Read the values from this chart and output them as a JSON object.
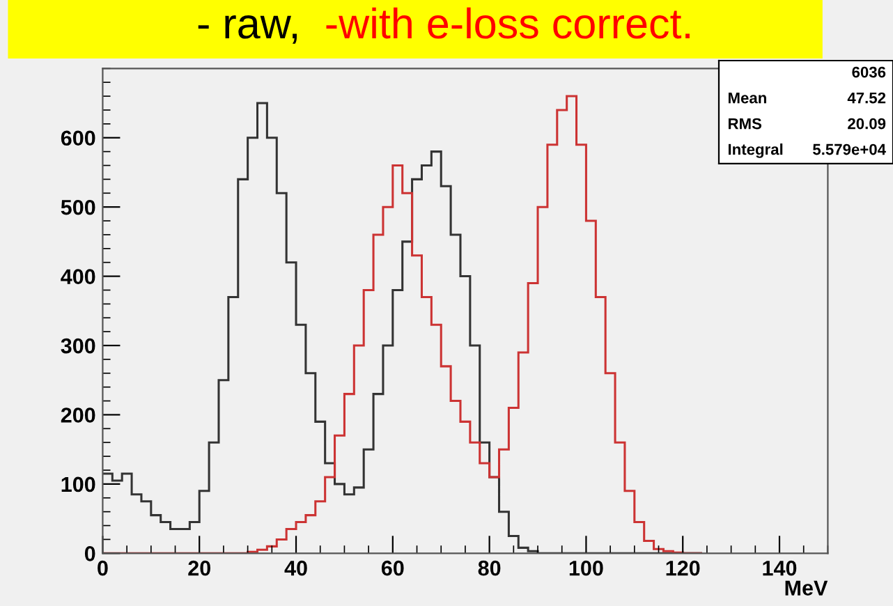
{
  "chart_data": {
    "type": "histogram",
    "xlabel": "MeV",
    "bins": [
      0,
      2,
      4,
      6,
      8,
      10,
      12,
      14,
      16,
      18,
      20,
      22,
      24,
      26,
      28,
      30,
      32,
      34,
      36,
      38,
      40,
      42,
      44,
      46,
      48,
      50,
      52,
      54,
      56,
      58,
      60,
      62,
      64,
      66,
      68,
      70,
      72,
      74,
      76,
      78,
      80,
      82,
      84,
      86,
      88,
      90,
      92,
      94,
      96,
      98,
      100,
      102,
      104,
      106,
      108,
      110,
      112,
      114,
      116,
      118,
      120,
      122,
      124
    ],
    "series": [
      {
        "name": "- raw,",
        "color": "#333333",
        "values": [
          115,
          105,
          115,
          85,
          75,
          55,
          45,
          35,
          35,
          45,
          90,
          160,
          250,
          370,
          540,
          600,
          650,
          600,
          520,
          420,
          330,
          260,
          190,
          130,
          100,
          85,
          95,
          150,
          230,
          300,
          380,
          450,
          540,
          560,
          580,
          530,
          460,
          400,
          300,
          160,
          110,
          60,
          25,
          8,
          3,
          0,
          0,
          0,
          0,
          0,
          0,
          0,
          0,
          0,
          0,
          0,
          0,
          0,
          0,
          0,
          0,
          0
        ]
      },
      {
        "name": "-with e-loss correct.",
        "color": "#cc3333",
        "values": [
          0,
          0,
          0,
          0,
          0,
          0,
          0,
          0,
          0,
          0,
          0,
          0,
          0,
          0,
          0,
          2,
          5,
          10,
          20,
          35,
          45,
          55,
          75,
          110,
          170,
          230,
          300,
          380,
          460,
          500,
          560,
          520,
          430,
          370,
          330,
          270,
          220,
          190,
          160,
          130,
          110,
          150,
          210,
          290,
          390,
          500,
          590,
          640,
          660,
          590,
          480,
          370,
          260,
          160,
          90,
          45,
          18,
          6,
          3,
          1,
          0,
          0
        ]
      }
    ],
    "xlim": [
      0,
      150
    ],
    "ylim": [
      0,
      700
    ],
    "xticks": [
      0,
      20,
      40,
      60,
      80,
      100,
      120,
      140
    ],
    "yticks": [
      0,
      100,
      200,
      300,
      400,
      500,
      600
    ],
    "legend": "top",
    "grid": false,
    "annotations": [
      "6036",
      "Mean 47.52",
      "RMS 20.09",
      "Integral 5.579e+04"
    ]
  }
}
